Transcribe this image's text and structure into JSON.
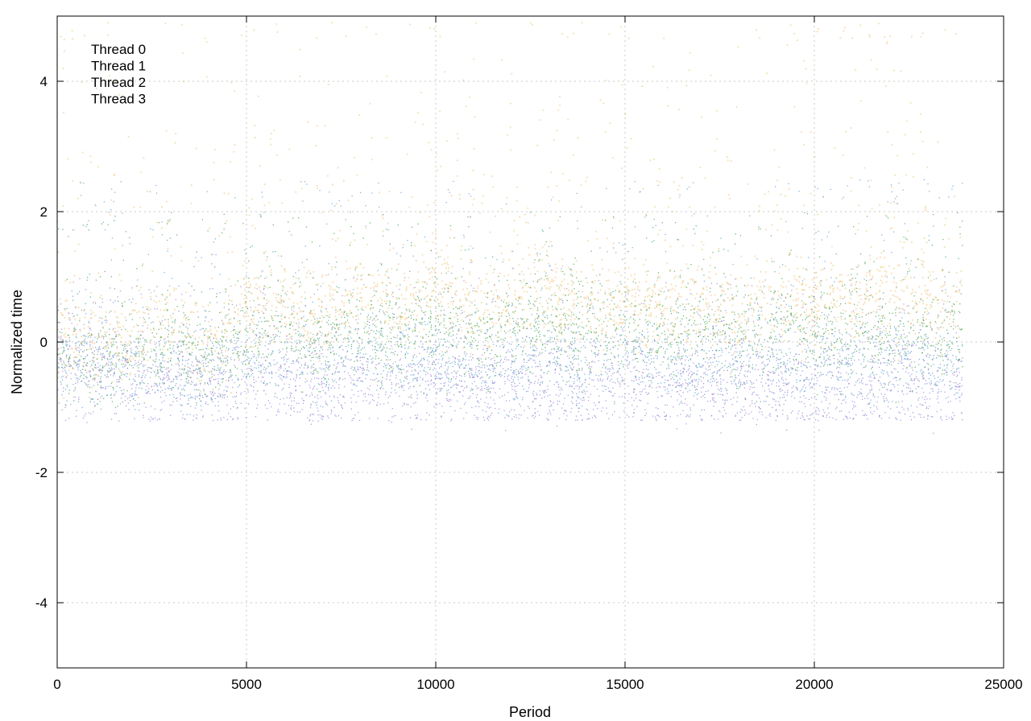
{
  "chart_data": {
    "type": "scatter",
    "title": "",
    "xlabel": "Period",
    "ylabel": "Normalized time",
    "xlim": [
      0,
      25000
    ],
    "ylim": [
      -5,
      5
    ],
    "xticks": [
      0,
      5000,
      10000,
      15000,
      20000,
      25000
    ],
    "yticks": [
      -4,
      -2,
      0,
      2,
      4
    ],
    "xtick_labels": [
      "0",
      "5000",
      "10000",
      "15000",
      "20000",
      "25000"
    ],
    "ytick_labels": [
      "-4",
      "-2",
      "0",
      "2",
      "4"
    ],
    "grid": true,
    "legend_position": "top-left",
    "x_extent": [
      0,
      23900
    ],
    "series": [
      {
        "name": "Thread 0",
        "color": "#9b7fd6",
        "typical_range": [
          -1.2,
          1.0
        ],
        "x": [
          0,
          1000,
          2000,
          3000,
          4000,
          5000,
          6000,
          7000,
          8000,
          9000,
          10000,
          11000,
          12000,
          13000,
          14000,
          15000,
          16000,
          17000,
          18000,
          19000,
          20000,
          21000,
          22000,
          23000,
          23900
        ],
        "y": [
          -0.4,
          -0.5,
          -0.55,
          -0.6,
          -0.65,
          -0.6,
          -0.55,
          -0.7,
          -0.6,
          -0.65,
          -0.7,
          -0.7,
          -0.65,
          -0.7,
          -0.75,
          -0.7,
          -0.7,
          -0.65,
          -0.7,
          -0.7,
          -0.75,
          -0.7,
          -0.7,
          -0.75,
          -0.8
        ]
      },
      {
        "name": "Thread 1",
        "color": "#3fa34d",
        "typical_range": [
          -1.0,
          2.0
        ],
        "x": [
          0,
          1000,
          2000,
          3000,
          4000,
          5000,
          6000,
          7000,
          8000,
          9000,
          10000,
          11000,
          12000,
          13000,
          14000,
          15000,
          16000,
          17000,
          18000,
          19000,
          20000,
          21000,
          22000,
          23000,
          23900
        ],
        "y": [
          -0.2,
          -0.3,
          -0.2,
          -0.1,
          -0.3,
          0.0,
          0.1,
          -0.1,
          0.2,
          0.0,
          0.2,
          0.0,
          0.1,
          0.2,
          0.0,
          0.1,
          0.0,
          0.1,
          0.0,
          0.2,
          0.0,
          0.1,
          0.0,
          0.1,
          0.0
        ]
      },
      {
        "name": "Thread 2",
        "color": "#5b9bd5",
        "typical_range": [
          -1.4,
          2.5
        ],
        "x": [
          0,
          1000,
          2000,
          3000,
          4000,
          5000,
          6000,
          7000,
          8000,
          9000,
          10000,
          11000,
          12000,
          13000,
          14000,
          15000,
          16000,
          17000,
          18000,
          19000,
          20000,
          21000,
          22000,
          23000,
          23900
        ],
        "y": [
          -0.3,
          -0.4,
          -0.4,
          -0.5,
          -0.5,
          -0.3,
          -0.3,
          -0.5,
          -0.3,
          -0.4,
          -0.3,
          -0.5,
          -0.4,
          -0.3,
          -0.5,
          -0.3,
          -0.4,
          -0.5,
          -0.4,
          -0.3,
          -0.5,
          -0.4,
          -0.4,
          -0.3,
          -0.5
        ]
      },
      {
        "name": "Thread 3",
        "color": "#e8a838",
        "typical_range": [
          -1.1,
          4.9
        ],
        "x": [
          0,
          1000,
          2000,
          3000,
          4000,
          5000,
          6000,
          7000,
          8000,
          9000,
          10000,
          11000,
          12000,
          13000,
          14000,
          15000,
          16000,
          17000,
          18000,
          19000,
          20000,
          21000,
          22000,
          23000,
          23900
        ],
        "y": [
          0.0,
          -0.2,
          0.1,
          0.3,
          0.0,
          0.5,
          0.6,
          0.3,
          0.8,
          0.5,
          0.8,
          0.5,
          0.6,
          0.8,
          0.4,
          0.6,
          0.5,
          0.6,
          0.4,
          0.7,
          0.5,
          0.6,
          0.9,
          0.6,
          0.5
        ]
      }
    ]
  }
}
